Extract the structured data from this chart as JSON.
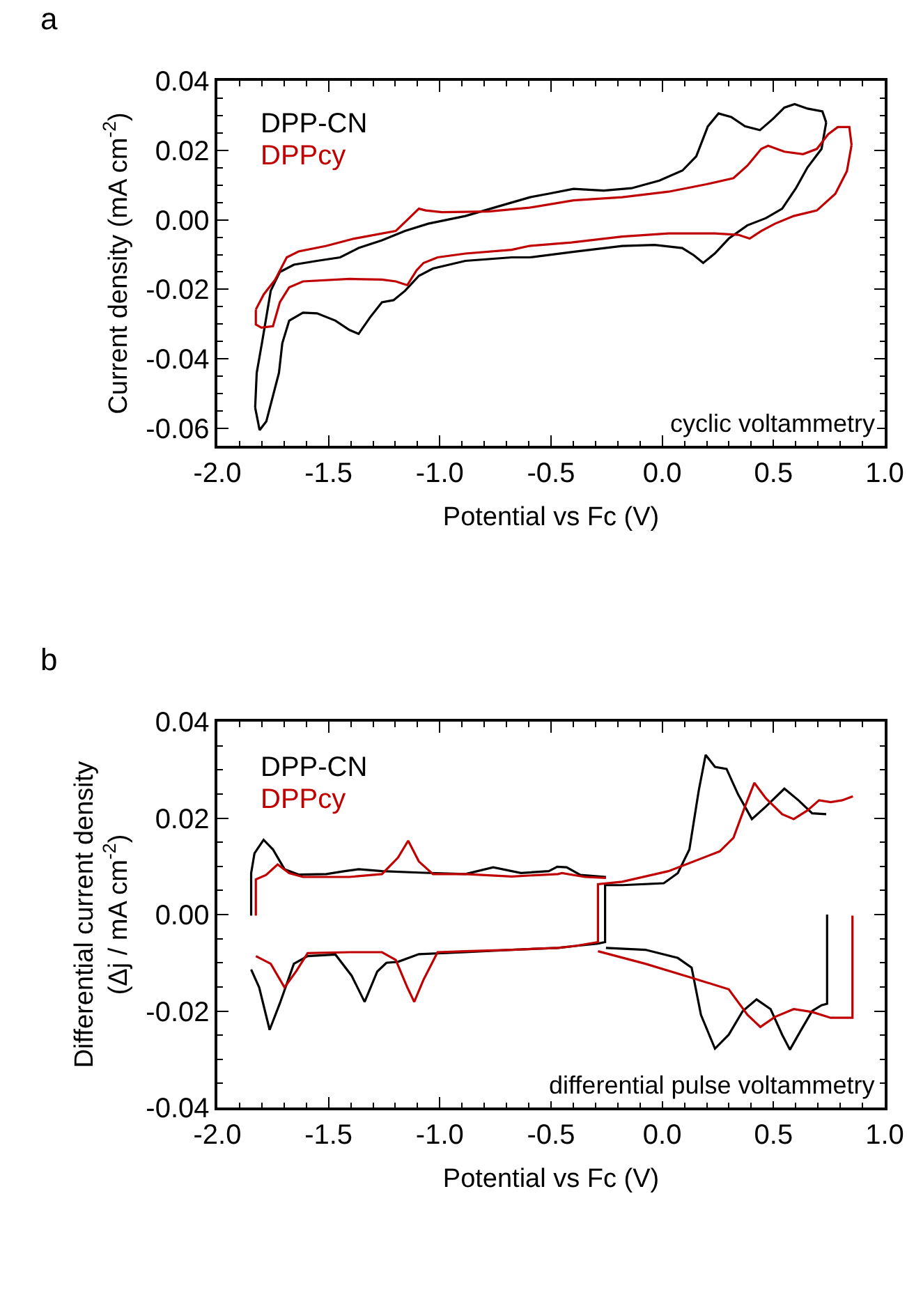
{
  "chart_data": [
    {
      "type": "line",
      "title": "a",
      "xlabel": "Potential vs Fc (V)",
      "ylabel": "Current density (mA cm$^{-2}$)",
      "annotations": [
        "cyclic voltammetry"
      ],
      "legend": "top left",
      "xlim": [
        -2.0,
        1.0
      ],
      "ylim": [
        -0.065,
        0.04
      ],
      "xticks": [
        {
          "value": -2.0,
          "label": "-2.0"
        },
        {
          "value": -1.9,
          "label": null
        },
        {
          "value": -1.8,
          "label": null
        },
        {
          "value": -1.7,
          "label": null
        },
        {
          "value": -1.6,
          "label": null
        },
        {
          "value": -1.5,
          "label": "-1.5"
        },
        {
          "value": -1.4,
          "label": null
        },
        {
          "value": -1.3,
          "label": null
        },
        {
          "value": -1.2,
          "label": null
        },
        {
          "value": -1.1,
          "label": null
        },
        {
          "value": -1.0,
          "label": "-1.0"
        },
        {
          "value": -0.9,
          "label": null
        },
        {
          "value": -0.8,
          "label": null
        },
        {
          "value": -0.7,
          "label": null
        },
        {
          "value": -0.6,
          "label": null
        },
        {
          "value": -0.5,
          "label": "-0.5"
        },
        {
          "value": -0.4,
          "label": null
        },
        {
          "value": -0.3,
          "label": null
        },
        {
          "value": -0.2,
          "label": null
        },
        {
          "value": -0.1,
          "label": null
        },
        {
          "value": 0.0,
          "label": "0.0"
        },
        {
          "value": 0.1,
          "label": null
        },
        {
          "value": 0.2,
          "label": null
        },
        {
          "value": 0.3,
          "label": null
        },
        {
          "value": 0.4,
          "label": null
        },
        {
          "value": 0.5,
          "label": "0.5"
        },
        {
          "value": 0.6,
          "label": null
        },
        {
          "value": 0.7,
          "label": null
        },
        {
          "value": 0.8,
          "label": null
        },
        {
          "value": 0.9,
          "label": null
        },
        {
          "value": 1.0,
          "label": "1.0"
        }
      ],
      "yticks": [
        0.04,
        {
          "value": 0.035,
          "label": null
        },
        {
          "value": 0.03,
          "label": null
        },
        {
          "value": 0.025,
          "label": null
        },
        0.02,
        {
          "value": 0.015,
          "label": null
        },
        {
          "value": 0.01,
          "label": null
        },
        {
          "value": 0.005,
          "label": null
        },
        {
          "value": 0.0,
          "label": "0.00"
        },
        {
          "value": -0.005,
          "label": null
        },
        {
          "value": -0.01,
          "label": null
        },
        {
          "value": -0.015,
          "label": null
        },
        -0.02,
        {
          "value": -0.025,
          "label": null
        },
        {
          "value": -0.03,
          "label": null
        },
        {
          "value": -0.035,
          "label": null
        },
        -0.04,
        {
          "value": -0.045,
          "label": null
        },
        {
          "value": -0.05,
          "label": null
        },
        {
          "value": -0.055,
          "label": null
        },
        -0.06
      ],
      "series": [
        {
          "name": "DPP-CN",
          "color": "#000000",
          "x": [
            0.737,
            0.716,
            0.653,
            0.601,
            0.539,
            0.466,
            0.382,
            0.299,
            0.236,
            0.184,
            0.142,
            0.09,
            -0.034,
            -0.18,
            -0.389,
            -0.597,
            -0.677,
            -0.885,
            -1.031,
            -1.094,
            -1.156,
            -1.208,
            -1.26,
            -1.313,
            -1.365,
            -1.406,
            -1.469,
            -1.552,
            -1.615,
            -1.677,
            -1.708,
            -1.723,
            -1.78,
            -1.81,
            -1.83,
            null,
            -1.83,
            -1.823,
            -1.798,
            -1.76,
            -1.719,
            -1.656,
            -1.552,
            -1.448,
            -1.365,
            -1.26,
            -1.156,
            -1.052,
            -0.885,
            -0.74,
            -0.594,
            -0.513,
            -0.399,
            -0.263,
            -0.138,
            -0.013,
            0.091,
            0.153,
            0.205,
            0.253,
            0.31,
            0.372,
            0.439,
            0.497,
            0.549,
            0.595,
            0.653,
            0.72,
            0.737
          ],
          "values": [
            0.028,
            0.0204,
            0.0151,
            0.0091,
            0.0032,
            0.0005,
            -0.0016,
            -0.0054,
            -0.0097,
            -0.0124,
            -0.0102,
            -0.0081,
            -0.0072,
            -0.0075,
            -0.0091,
            -0.0108,
            -0.0108,
            -0.0118,
            -0.014,
            -0.0161,
            -0.0204,
            -0.0231,
            -0.0237,
            -0.028,
            -0.0328,
            -0.0317,
            -0.029,
            -0.0269,
            -0.0267,
            -0.029,
            -0.0355,
            -0.044,
            -0.058,
            -0.0605,
            -0.054,
            null,
            -0.054,
            -0.044,
            -0.0349,
            -0.0204,
            -0.015,
            -0.0129,
            -0.0118,
            -0.0108,
            -0.0081,
            -0.0059,
            -0.0032,
            -0.0011,
            0.0011,
            0.0038,
            0.0065,
            0.0075,
            0.0089,
            0.0084,
            0.0091,
            0.0113,
            0.0142,
            0.0183,
            0.0269,
            0.0306,
            0.0296,
            0.0269,
            0.0258,
            0.029,
            0.0323,
            0.0333,
            0.032,
            0.0312,
            0.028
          ]
        },
        {
          "name": "DPPcy",
          "color": "#c00000",
          "x": [
            -1.827,
            -1.792,
            -1.74,
            -1.688,
            -1.635,
            -1.51,
            -1.385,
            -1.198,
            -1.146,
            -1.094,
            -1.063,
            -0.99,
            -0.781,
            -0.597,
            -0.399,
            -0.18,
            0.028,
            0.195,
            0.32,
            0.383,
            0.445,
            0.476,
            0.549,
            0.633,
            0.695,
            0.747,
            0.789,
            0.841,
            0.851,
            null,
            0.851,
            0.83,
            0.778,
            0.695,
            0.591,
            0.507,
            0.445,
            0.393,
            0.341,
            0.237,
            0.028,
            -0.18,
            -0.409,
            -0.597,
            -0.677,
            -0.885,
            -1.01,
            -1.073,
            -1.104,
            -1.146,
            -1.198,
            -1.26,
            -1.406,
            -1.615,
            -1.677,
            -1.719,
            -1.75,
            -1.802,
            -1.827,
            -1.827
          ],
          "values": [
            -0.0258,
            -0.0215,
            -0.0172,
            -0.0108,
            -0.0091,
            -0.0075,
            -0.0054,
            -0.0032,
            0.0,
            0.0032,
            0.0027,
            0.0022,
            0.0024,
            0.0035,
            0.0056,
            0.0065,
            0.0081,
            0.0102,
            0.012,
            0.0156,
            0.0204,
            0.0213,
            0.0196,
            0.0189,
            0.0204,
            0.0247,
            0.0267,
            0.0267,
            0.0215,
            null,
            0.0215,
            0.014,
            0.0075,
            0.0027,
            0.0011,
            -0.0011,
            -0.0032,
            -0.0054,
            -0.0043,
            -0.0039,
            -0.0039,
            -0.0048,
            -0.0065,
            -0.0075,
            -0.0086,
            -0.0097,
            -0.0108,
            -0.0124,
            -0.0145,
            -0.0188,
            -0.0177,
            -0.0172,
            -0.017,
            -0.0177,
            -0.0194,
            -0.0237,
            -0.0306,
            -0.031,
            -0.0301,
            -0.0258
          ]
        }
      ]
    },
    {
      "type": "line",
      "title": "b",
      "xlabel": "Potential vs Fc (V)",
      "ylabel": "Differential current density\n(Δj / mA cm$^{-2}$)",
      "annotations": [
        "differential pulse voltammetry"
      ],
      "legend": "top left",
      "xlim": [
        -2.0,
        1.0
      ],
      "ylim": [
        -0.04,
        0.04
      ],
      "xticks": [
        {
          "value": -2.0,
          "label": "-2.0"
        },
        {
          "value": -1.9,
          "label": null
        },
        {
          "value": -1.8,
          "label": null
        },
        {
          "value": -1.7,
          "label": null
        },
        {
          "value": -1.6,
          "label": null
        },
        {
          "value": -1.5,
          "label": "-1.5"
        },
        {
          "value": -1.4,
          "label": null
        },
        {
          "value": -1.3,
          "label": null
        },
        {
          "value": -1.2,
          "label": null
        },
        {
          "value": -1.1,
          "label": null
        },
        {
          "value": -1.0,
          "label": "-1.0"
        },
        {
          "value": -0.9,
          "label": null
        },
        {
          "value": -0.8,
          "label": null
        },
        {
          "value": -0.7,
          "label": null
        },
        {
          "value": -0.6,
          "label": null
        },
        {
          "value": -0.5,
          "label": "-0.5"
        },
        {
          "value": -0.4,
          "label": null
        },
        {
          "value": -0.3,
          "label": null
        },
        {
          "value": -0.2,
          "label": null
        },
        {
          "value": -0.1,
          "label": null
        },
        {
          "value": 0.0,
          "label": "0.0"
        },
        {
          "value": 0.1,
          "label": null
        },
        {
          "value": 0.2,
          "label": null
        },
        {
          "value": 0.3,
          "label": null
        },
        {
          "value": 0.4,
          "label": null
        },
        {
          "value": 0.5,
          "label": "0.5"
        },
        {
          "value": 0.6,
          "label": null
        },
        {
          "value": 0.7,
          "label": null
        },
        {
          "value": 0.8,
          "label": null
        },
        {
          "value": 0.9,
          "label": null
        },
        {
          "value": 1.0,
          "label": "1.0"
        }
      ],
      "yticks": [
        0.04,
        {
          "value": 0.035,
          "label": null
        },
        {
          "value": 0.03,
          "label": null
        },
        {
          "value": 0.025,
          "label": null
        },
        0.02,
        {
          "value": 0.015,
          "label": null
        },
        {
          "value": 0.01,
          "label": null
        },
        {
          "value": 0.005,
          "label": null
        },
        {
          "value": 0.0,
          "label": "0.00"
        },
        {
          "value": -0.005,
          "label": null
        },
        {
          "value": -0.01,
          "label": null
        },
        {
          "value": -0.015,
          "label": null
        },
        -0.02,
        {
          "value": -0.025,
          "label": null
        },
        {
          "value": -0.03,
          "label": null
        },
        {
          "value": -0.035,
          "label": null
        },
        -0.04
      ],
      "series": [
        {
          "name": "DPP-CN",
          "color": "#000000",
          "x": [
            -1.848,
            -1.848,
            -1.833,
            -1.792,
            -1.75,
            -1.698,
            -1.635,
            -1.51,
            -1.427,
            -1.365,
            -1.26,
            -1.094,
            -0.885,
            -0.76,
            -0.635,
            -0.51,
            -0.472,
            -0.43,
            -0.368,
            -0.253,
            null,
            -1.848,
            -1.812,
            -1.765,
            -1.719,
            -1.656,
            -1.594,
            -1.469,
            -1.396,
            -1.338,
            -1.281,
            -1.24,
            -1.188,
            -1.094,
            -0.885,
            -0.677,
            -0.469,
            -0.389,
            -0.289,
            -0.257,
            -0.257,
            -0.18,
            0.007,
            0.07,
            0.122,
            0.164,
            0.195,
            0.237,
            0.289,
            0.341,
            0.403,
            0.466,
            0.549,
            0.612,
            0.674,
            0.737,
            null,
            -0.253,
            -0.076,
            0.07,
            0.132,
            0.174,
            0.237,
            0.299,
            0.362,
            0.424,
            0.487,
            0.539,
            0.574,
            0.622,
            0.674,
            0.716,
            0.741,
            0.741
          ],
          "values": [
            -0.0002,
            0.0086,
            0.0127,
            0.0155,
            0.0135,
            0.0094,
            0.0083,
            0.0084,
            0.009,
            0.0094,
            0.009,
            0.0087,
            0.0084,
            0.0098,
            0.0086,
            0.009,
            0.0099,
            0.0098,
            0.0082,
            0.0078,
            null,
            -0.0114,
            -0.0151,
            -0.0239,
            -0.0184,
            -0.0102,
            -0.0086,
            -0.0083,
            -0.0127,
            -0.0181,
            -0.0118,
            -0.01,
            -0.0098,
            -0.0082,
            -0.0078,
            -0.0073,
            -0.0069,
            -0.0065,
            -0.006,
            -0.0057,
            0.0061,
            0.0061,
            0.0065,
            0.0086,
            0.0135,
            0.0257,
            0.0331,
            0.0306,
            0.0302,
            0.0249,
            0.0198,
            0.0224,
            0.0261,
            0.0237,
            0.021,
            0.0208,
            null,
            -0.0069,
            -0.0073,
            -0.009,
            -0.011,
            -0.0208,
            -0.0278,
            -0.0249,
            -0.02,
            -0.0176,
            -0.0196,
            -0.0249,
            -0.028,
            -0.0241,
            -0.02,
            -0.0188,
            -0.0185,
            0.0
          ]
        },
        {
          "name": "DPPcy",
          "color": "#c00000",
          "x": [
            -1.827,
            -1.827,
            -1.781,
            -1.729,
            -1.677,
            -1.615,
            -1.406,
            -1.26,
            -1.188,
            -1.142,
            -1.094,
            -1.031,
            -0.885,
            -0.677,
            -0.469,
            -0.451,
            -0.347,
            -0.253,
            null,
            -1.827,
            -1.76,
            -1.698,
            -1.646,
            -1.594,
            -1.406,
            -1.26,
            -1.198,
            -1.146,
            -1.115,
            -1.073,
            -1.01,
            -0.885,
            -0.677,
            -0.469,
            -0.389,
            -0.289,
            -0.289,
            -0.18,
            0.028,
            0.258,
            0.32,
            0.372,
            0.414,
            0.466,
            0.539,
            0.591,
            0.653,
            0.705,
            0.757,
            0.809,
            0.857,
            null,
            -0.289,
            -0.076,
            0.132,
            0.299,
            0.383,
            0.441,
            0.507,
            0.591,
            0.674,
            0.757,
            0.855,
            0.855
          ],
          "values": [
            -0.0002,
            0.0073,
            0.0082,
            0.0104,
            0.0086,
            0.0078,
            0.0078,
            0.0084,
            0.0118,
            0.0153,
            0.011,
            0.0084,
            0.0084,
            0.0079,
            0.0084,
            0.0086,
            0.0078,
            0.0076,
            null,
            -0.0086,
            -0.0102,
            -0.0151,
            -0.0118,
            -0.008,
            -0.0078,
            -0.0078,
            -0.0094,
            -0.0151,
            -0.0181,
            -0.0135,
            -0.0078,
            -0.0076,
            -0.0073,
            -0.0069,
            -0.0065,
            -0.0057,
            0.0063,
            0.0068,
            0.009,
            0.0131,
            0.0159,
            0.0224,
            0.0273,
            0.0241,
            0.0208,
            0.0198,
            0.0216,
            0.0237,
            0.0233,
            0.0237,
            0.0245,
            null,
            -0.0076,
            -0.0102,
            -0.0131,
            -0.0155,
            -0.0208,
            -0.0233,
            -0.0212,
            -0.0196,
            -0.0202,
            -0.0214,
            -0.0214,
            -0.0002
          ]
        }
      ]
    }
  ]
}
